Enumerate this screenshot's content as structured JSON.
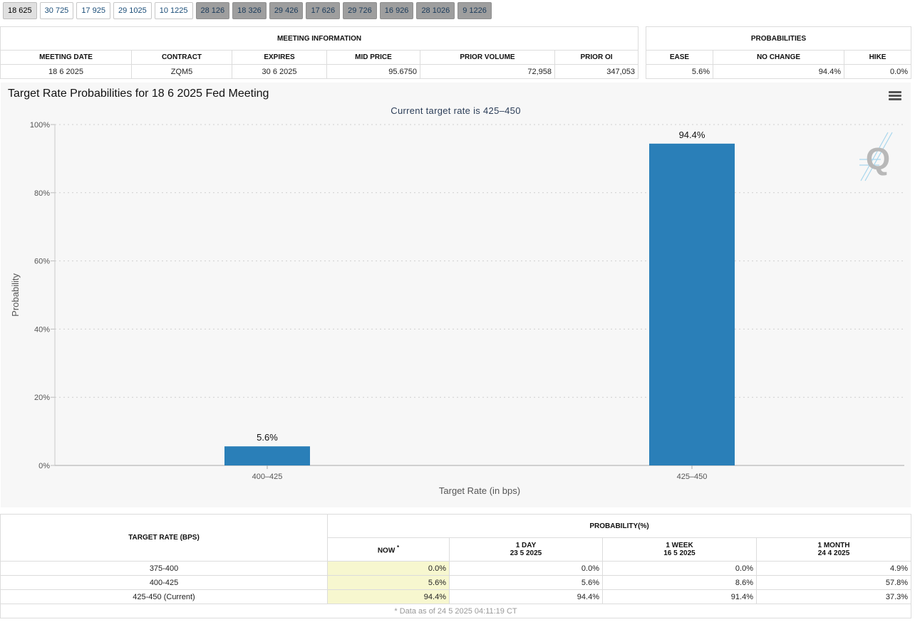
{
  "tabs": [
    {
      "label": "18 625",
      "state": "selected"
    },
    {
      "label": "30 725",
      "state": "light"
    },
    {
      "label": "17 925",
      "state": "light"
    },
    {
      "label": "29 1025",
      "state": "light"
    },
    {
      "label": "10 1225",
      "state": "light"
    },
    {
      "label": "28 126",
      "state": "dark"
    },
    {
      "label": "18 326",
      "state": "dark"
    },
    {
      "label": "29 426",
      "state": "dark"
    },
    {
      "label": "17 626",
      "state": "dark"
    },
    {
      "label": "29 726",
      "state": "dark"
    },
    {
      "label": "16 926",
      "state": "dark"
    },
    {
      "label": "28 1026",
      "state": "dark"
    },
    {
      "label": "9 1226",
      "state": "dark"
    }
  ],
  "meeting_info": {
    "title": "MEETING INFORMATION",
    "headers": [
      "MEETING DATE",
      "CONTRACT",
      "EXPIRES",
      "MID PRICE",
      "PRIOR VOLUME",
      "PRIOR OI"
    ],
    "row": [
      "18 6 2025",
      "ZQM5",
      "30 6 2025",
      "95.6750",
      "72,958",
      "347,053"
    ]
  },
  "probabilities": {
    "title": "PROBABILITIES",
    "headers": [
      "EASE",
      "NO CHANGE",
      "HIKE"
    ],
    "row": [
      "5.6%",
      "94.4%",
      "0.0%"
    ]
  },
  "chart": {
    "title": "Target Rate Probabilities for 18 6 2025 Fed Meeting",
    "subtitle": "Current target rate is 425–450",
    "ylabel": "Probability",
    "xlabel": "Target Rate (in bps)",
    "watermark_letter": "Q",
    "bar_color": "#2a7fb8",
    "menu_icon": "hamburger-menu-icon"
  },
  "chart_data": {
    "type": "bar",
    "categories": [
      "400–425",
      "425–450"
    ],
    "values": [
      5.6,
      94.4
    ],
    "data_labels": [
      "5.6%",
      "94.4%"
    ],
    "title": "Target Rate Probabilities for 18 6 2025 Fed Meeting",
    "subtitle": "Current target rate is 425–450",
    "xlabel": "Target Rate (in bps)",
    "ylabel": "Probability",
    "ylim": [
      0,
      100
    ],
    "yticks": [
      "0%",
      "20%",
      "40%",
      "60%",
      "80%",
      "100%"
    ],
    "ytick_values": [
      0,
      20,
      40,
      60,
      80,
      100
    ],
    "grid": true,
    "legend": "none"
  },
  "prob_table": {
    "col_target": "TARGET RATE (BPS)",
    "col_prob": "PROBABILITY(%)",
    "now_label": "NOW",
    "now_mark": "*",
    "periods": [
      {
        "label": "1 DAY",
        "date": "23 5 2025"
      },
      {
        "label": "1 WEEK",
        "date": "16 5 2025"
      },
      {
        "label": "1 MONTH",
        "date": "24 4 2025"
      }
    ],
    "rows": [
      {
        "rate": "375-400",
        "now": "0.0%",
        "day": "0.0%",
        "week": "0.0%",
        "month": "4.9%"
      },
      {
        "rate": "400-425",
        "now": "5.6%",
        "day": "5.6%",
        "week": "8.6%",
        "month": "57.8%"
      },
      {
        "rate": "425-450 (Current)",
        "now": "94.4%",
        "day": "94.4%",
        "week": "91.4%",
        "month": "37.3%"
      }
    ],
    "footnote": "* Data as of 24 5 2025 04:11:19 CT"
  }
}
